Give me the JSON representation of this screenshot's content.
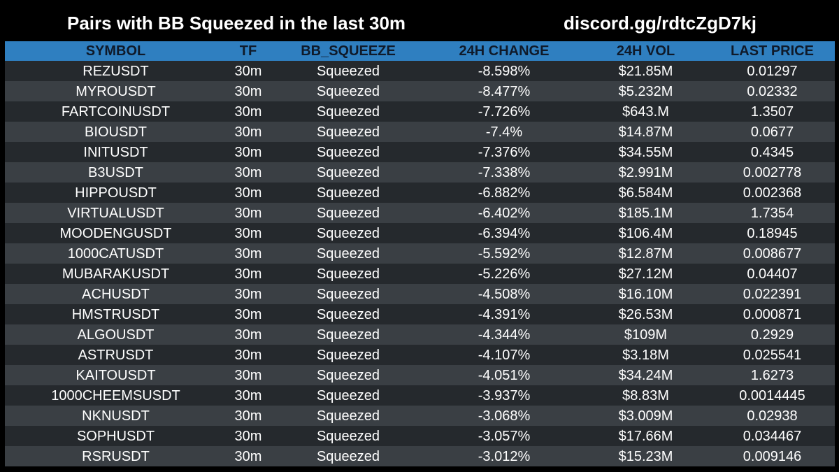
{
  "header": {
    "title": "Pairs with BB Squeezed in the last 30m",
    "link": "discord.gg/rdtcZgD7kj"
  },
  "table": {
    "columns": [
      "SYMBOL",
      "TF",
      "BB_SQUEEZE",
      "24H CHANGE",
      "24H VOL",
      "LAST PRICE"
    ],
    "rows": [
      [
        "REZUSDT",
        "30m",
        "Squeezed",
        "-8.598%",
        "$21.85M",
        "0.01297"
      ],
      [
        "MYROUSDT",
        "30m",
        "Squeezed",
        "-8.477%",
        "$5.232M",
        "0.02332"
      ],
      [
        "FARTCOINUSDT",
        "30m",
        "Squeezed",
        "-7.726%",
        "$643.M",
        "1.3507"
      ],
      [
        "BIOUSDT",
        "30m",
        "Squeezed",
        "-7.4%",
        "$14.87M",
        "0.0677"
      ],
      [
        "INITUSDT",
        "30m",
        "Squeezed",
        "-7.376%",
        "$34.55M",
        "0.4345"
      ],
      [
        "B3USDT",
        "30m",
        "Squeezed",
        "-7.338%",
        "$2.991M",
        "0.002778"
      ],
      [
        "HIPPOUSDT",
        "30m",
        "Squeezed",
        "-6.882%",
        "$6.584M",
        "0.002368"
      ],
      [
        "VIRTUALUSDT",
        "30m",
        "Squeezed",
        "-6.402%",
        "$185.1M",
        "1.7354"
      ],
      [
        "MOODENGUSDT",
        "30m",
        "Squeezed",
        "-6.394%",
        "$106.4M",
        "0.18945"
      ],
      [
        "1000CATUSDT",
        "30m",
        "Squeezed",
        "-5.592%",
        "$12.87M",
        "0.008677"
      ],
      [
        "MUBARAKUSDT",
        "30m",
        "Squeezed",
        "-5.226%",
        "$27.12M",
        "0.04407"
      ],
      [
        "ACHUSDT",
        "30m",
        "Squeezed",
        "-4.508%",
        "$16.10M",
        "0.022391"
      ],
      [
        "HMSTRUSDT",
        "30m",
        "Squeezed",
        "-4.391%",
        "$26.53M",
        "0.000871"
      ],
      [
        "ALGOUSDT",
        "30m",
        "Squeezed",
        "-4.344%",
        "$109M",
        "0.2929"
      ],
      [
        "ASTRUSDT",
        "30m",
        "Squeezed",
        "-4.107%",
        "$3.18M",
        "0.025541"
      ],
      [
        "KAITOUSDT",
        "30m",
        "Squeezed",
        "-4.051%",
        "$34.24M",
        "1.6273"
      ],
      [
        "1000CHEEMSUSDT",
        "30m",
        "Squeezed",
        "-3.937%",
        "$8.83M",
        "0.0014445"
      ],
      [
        "NKNUSDT",
        "30m",
        "Squeezed",
        "-3.068%",
        "$3.009M",
        "0.02938"
      ],
      [
        "SOPHUSDT",
        "30m",
        "Squeezed",
        "-3.057%",
        "$17.66M",
        "0.034467"
      ],
      [
        "RSRUSDT",
        "30m",
        "Squeezed",
        "-3.012%",
        "$15.23M",
        "0.009146"
      ]
    ]
  },
  "colors": {
    "background": "#000000",
    "header_row": "#2f7fc0",
    "row_dark": "#25292d",
    "row_light": "#3a3f44",
    "text": "#ffffff"
  }
}
